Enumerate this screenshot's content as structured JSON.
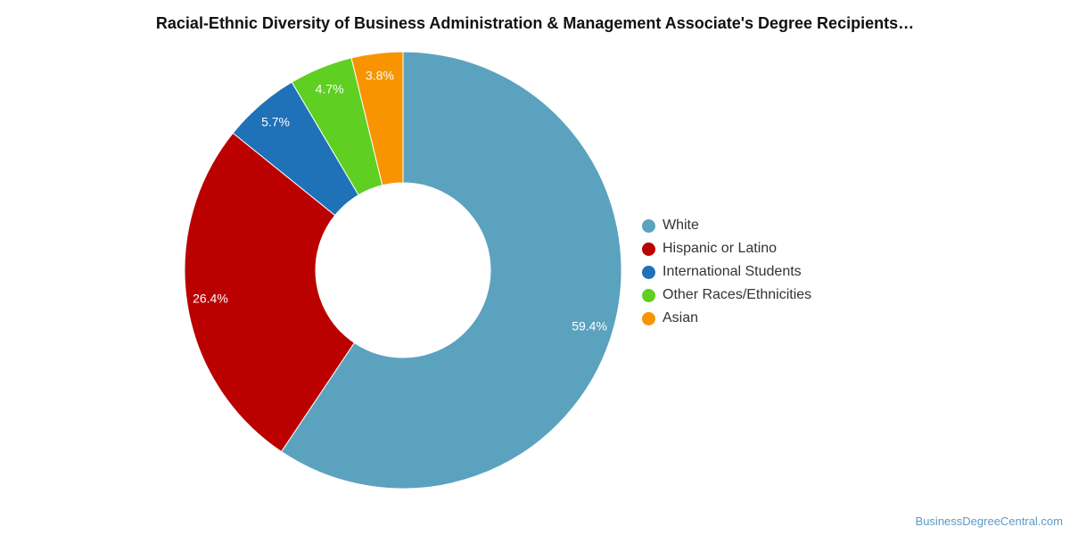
{
  "chart_data": {
    "type": "pie",
    "title": "Racial-Ethnic Diversity of Business Administration & Management Associate's Degree Recipients…",
    "legend_position": "right",
    "series": [
      {
        "name": "White",
        "value": 59.4,
        "label": "59.4%",
        "color": "#5ba2bf"
      },
      {
        "name": "Hispanic or Latino",
        "value": 26.4,
        "label": "26.4%",
        "color": "#bb0000"
      },
      {
        "name": "International Students",
        "value": 5.7,
        "label": "5.7%",
        "color": "#1f71b8"
      },
      {
        "name": "Other Races/Ethnicities",
        "value": 4.7,
        "label": "4.7%",
        "color": "#5fcf22"
      },
      {
        "name": "Asian",
        "value": 3.8,
        "label": "3.8%",
        "color": "#f79400"
      }
    ]
  },
  "source_credit": "BusinessDegreeCentral.com"
}
